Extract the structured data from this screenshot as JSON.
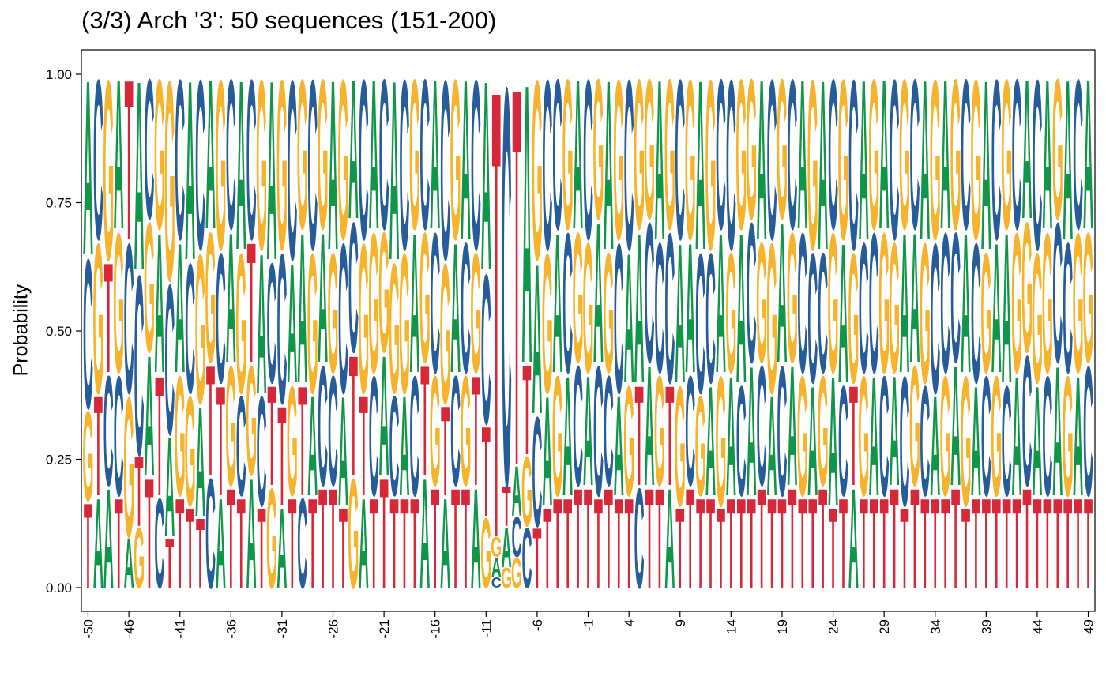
{
  "chart_data": {
    "type": "sequence-logo",
    "title": "(3/3) Arch '3': 50 sequences (151-200)",
    "ylabel": "Probability",
    "xlabel": "",
    "ylim": [
      0,
      1
    ],
    "yticks": [
      "0.00",
      "0.25",
      "0.50",
      "0.75",
      "1.00"
    ],
    "xtick_labels": [
      "-50",
      "-46",
      "-41",
      "-36",
      "-31",
      "-26",
      "-21",
      "-16",
      "-11",
      "-6",
      "-1",
      "4",
      "9",
      "14",
      "19",
      "24",
      "29",
      "34",
      "39",
      "44",
      "49"
    ],
    "positions": [
      -50,
      -49,
      -48,
      -47,
      -46,
      -45,
      -44,
      -43,
      -42,
      -41,
      -40,
      -39,
      -38,
      -37,
      -36,
      -35,
      -34,
      -33,
      -32,
      -31,
      -30,
      -29,
      -28,
      -27,
      -26,
      -25,
      -24,
      -23,
      -22,
      -21,
      -20,
      -19,
      -18,
      -17,
      -16,
      -15,
      -14,
      -13,
      -12,
      -11,
      -10,
      -9,
      -8,
      -7,
      -6,
      -5,
      -4,
      -3,
      -2,
      -1,
      1,
      2,
      3,
      4,
      5,
      6,
      7,
      8,
      9,
      10,
      11,
      12,
      13,
      14,
      15,
      16,
      17,
      18,
      19,
      20,
      21,
      22,
      23,
      24,
      25,
      26,
      27,
      28,
      29,
      30,
      31,
      32,
      33,
      34,
      35,
      36,
      37,
      38,
      39,
      40,
      41,
      42,
      43,
      44,
      45,
      46,
      47,
      48,
      49
    ],
    "bases": [
      "A",
      "C",
      "G",
      "T"
    ],
    "colors": {
      "A": "#109648",
      "C": "#255C99",
      "G": "#F7B32B",
      "T": "#D62839"
    },
    "probabilities": [
      [
        0.35,
        0.3,
        0.18,
        0.17
      ],
      [
        0.18,
        0.32,
        0.3,
        0.2
      ],
      [
        0.2,
        0.22,
        0.36,
        0.22
      ],
      [
        0.3,
        0.24,
        0.28,
        0.18
      ],
      [
        0.1,
        0.3,
        0.28,
        0.32
      ],
      [
        0.38,
        0.36,
        0.12,
        0.14
      ],
      [
        0.24,
        0.28,
        0.26,
        0.22
      ],
      [
        0.28,
        0.18,
        0.3,
        0.24
      ],
      [
        0.2,
        0.3,
        0.4,
        0.1
      ],
      [
        0.26,
        0.32,
        0.24,
        0.18
      ],
      [
        0.36,
        0.26,
        0.22,
        0.16
      ],
      [
        0.22,
        0.34,
        0.3,
        0.14
      ],
      [
        0.3,
        0.22,
        0.26,
        0.22
      ],
      [
        0.18,
        0.26,
        0.34,
        0.22
      ],
      [
        0.26,
        0.3,
        0.24,
        0.2
      ],
      [
        0.34,
        0.2,
        0.28,
        0.18
      ],
      [
        0.22,
        0.32,
        0.22,
        0.24
      ],
      [
        0.28,
        0.22,
        0.34,
        0.16
      ],
      [
        0.36,
        0.24,
        0.2,
        0.2
      ],
      [
        0.16,
        0.3,
        0.34,
        0.2
      ],
      [
        0.24,
        0.36,
        0.22,
        0.18
      ],
      [
        0.3,
        0.18,
        0.3,
        0.22
      ],
      [
        0.2,
        0.34,
        0.28,
        0.18
      ],
      [
        0.26,
        0.24,
        0.3,
        0.2
      ],
      [
        0.34,
        0.22,
        0.24,
        0.2
      ],
      [
        0.22,
        0.3,
        0.32,
        0.16
      ],
      [
        0.28,
        0.26,
        0.22,
        0.24
      ],
      [
        0.18,
        0.32,
        0.3,
        0.2
      ],
      [
        0.3,
        0.24,
        0.28,
        0.18
      ],
      [
        0.24,
        0.3,
        0.24,
        0.22
      ],
      [
        0.36,
        0.2,
        0.26,
        0.18
      ],
      [
        0.2,
        0.34,
        0.28,
        0.18
      ],
      [
        0.28,
        0.24,
        0.3,
        0.18
      ],
      [
        0.22,
        0.3,
        0.26,
        0.22
      ],
      [
        0.3,
        0.28,
        0.22,
        0.2
      ],
      [
        0.18,
        0.36,
        0.28,
        0.18
      ],
      [
        0.26,
        0.22,
        0.32,
        0.2
      ],
      [
        0.32,
        0.26,
        0.22,
        0.2
      ],
      [
        0.2,
        0.34,
        0.24,
        0.22
      ],
      [
        0.38,
        0.3,
        0.14,
        0.18
      ],
      [
        0.04,
        0.02,
        0.04,
        0.9
      ],
      [
        0.08,
        0.8,
        0.04,
        0.08
      ],
      [
        0.1,
        0.08,
        0.06,
        0.76
      ],
      [
        0.56,
        0.12,
        0.14,
        0.18
      ],
      [
        0.3,
        0.22,
        0.36,
        0.12
      ],
      [
        0.22,
        0.34,
        0.28,
        0.16
      ],
      [
        0.28,
        0.3,
        0.24,
        0.18
      ],
      [
        0.24,
        0.28,
        0.3,
        0.18
      ],
      [
        0.3,
        0.24,
        0.26,
        0.2
      ],
      [
        0.22,
        0.32,
        0.26,
        0.2
      ],
      [
        0.28,
        0.26,
        0.28,
        0.18
      ],
      [
        0.34,
        0.22,
        0.24,
        0.2
      ],
      [
        0.2,
        0.3,
        0.32,
        0.18
      ],
      [
        0.26,
        0.34,
        0.22,
        0.18
      ],
      [
        0.3,
        0.2,
        0.3,
        0.2
      ],
      [
        0.24,
        0.28,
        0.28,
        0.2
      ],
      [
        0.32,
        0.26,
        0.22,
        0.2
      ],
      [
        0.2,
        0.3,
        0.3,
        0.2
      ],
      [
        0.28,
        0.32,
        0.24,
        0.16
      ],
      [
        0.26,
        0.22,
        0.32,
        0.2
      ],
      [
        0.34,
        0.28,
        0.2,
        0.18
      ],
      [
        0.22,
        0.26,
        0.34,
        0.18
      ],
      [
        0.28,
        0.3,
        0.26,
        0.16
      ],
      [
        0.24,
        0.34,
        0.24,
        0.18
      ],
      [
        0.3,
        0.22,
        0.3,
        0.18
      ],
      [
        0.26,
        0.28,
        0.28,
        0.18
      ],
      [
        0.32,
        0.24,
        0.24,
        0.2
      ],
      [
        0.2,
        0.32,
        0.3,
        0.18
      ],
      [
        0.28,
        0.26,
        0.28,
        0.18
      ],
      [
        0.24,
        0.3,
        0.26,
        0.2
      ],
      [
        0.3,
        0.28,
        0.24,
        0.18
      ],
      [
        0.22,
        0.26,
        0.34,
        0.18
      ],
      [
        0.34,
        0.24,
        0.22,
        0.2
      ],
      [
        0.26,
        0.3,
        0.28,
        0.16
      ],
      [
        0.28,
        0.22,
        0.32,
        0.18
      ],
      [
        0.2,
        0.34,
        0.26,
        0.2
      ],
      [
        0.32,
        0.26,
        0.24,
        0.18
      ],
      [
        0.24,
        0.28,
        0.3,
        0.18
      ],
      [
        0.3,
        0.24,
        0.28,
        0.18
      ],
      [
        0.22,
        0.32,
        0.26,
        0.2
      ],
      [
        0.28,
        0.26,
        0.3,
        0.16
      ],
      [
        0.26,
        0.3,
        0.24,
        0.2
      ],
      [
        0.32,
        0.22,
        0.28,
        0.18
      ],
      [
        0.2,
        0.3,
        0.32,
        0.18
      ],
      [
        0.3,
        0.28,
        0.24,
        0.18
      ],
      [
        0.24,
        0.26,
        0.3,
        0.2
      ],
      [
        0.28,
        0.3,
        0.26,
        0.16
      ],
      [
        0.22,
        0.28,
        0.32,
        0.18
      ],
      [
        0.34,
        0.24,
        0.24,
        0.18
      ],
      [
        0.26,
        0.32,
        0.24,
        0.18
      ],
      [
        0.3,
        0.22,
        0.3,
        0.18
      ],
      [
        0.24,
        0.3,
        0.28,
        0.18
      ],
      [
        0.28,
        0.26,
        0.26,
        0.2
      ],
      [
        0.22,
        0.34,
        0.26,
        0.18
      ],
      [
        0.3,
        0.24,
        0.28,
        0.18
      ],
      [
        0.26,
        0.28,
        0.28,
        0.18
      ],
      [
        0.32,
        0.26,
        0.24,
        0.18
      ],
      [
        0.24,
        0.3,
        0.28,
        0.18
      ],
      [
        0.3,
        0.26,
        0.26,
        0.18
      ]
    ]
  }
}
